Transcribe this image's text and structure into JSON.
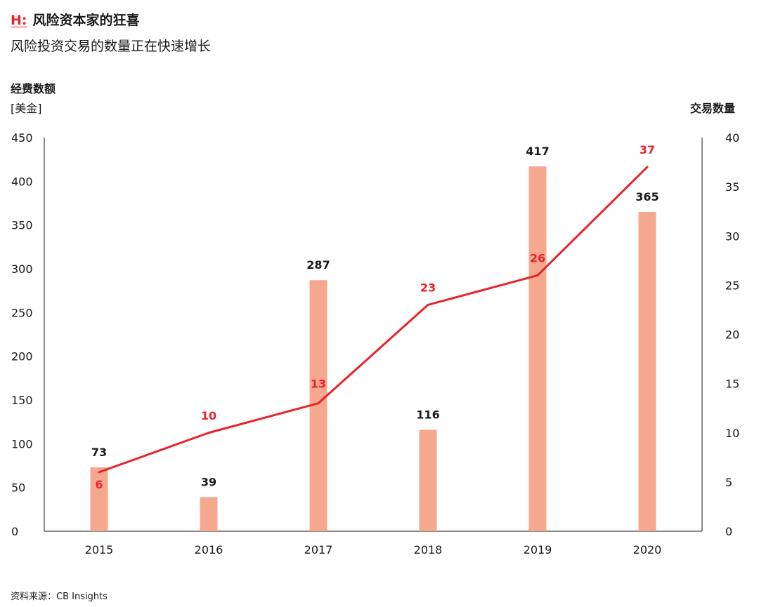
{
  "header": {
    "prefix": "H:",
    "title": "风险资本家的狂喜",
    "subtitle": "风险投资交易的数量正在快速增长"
  },
  "source": "资料来源：CB Insights",
  "colors": {
    "bar": "#f5a88e",
    "line": "#e8242b",
    "accent": "#e8242b",
    "text": "#1a1a1a",
    "axis": "#1a1a1a"
  },
  "chart_data": {
    "type": "bar",
    "categories": [
      "2015",
      "2016",
      "2017",
      "2018",
      "2019",
      "2020"
    ],
    "y_left": {
      "title": "经费数额",
      "unit": "[美金]",
      "ylim": [
        0,
        450
      ],
      "ticks": [
        0,
        50,
        100,
        150,
        200,
        250,
        300,
        350,
        400,
        450
      ]
    },
    "y_right": {
      "title": "交易数量",
      "ylim": [
        0,
        40
      ],
      "ticks": [
        0,
        5,
        10,
        15,
        20,
        25,
        30,
        35,
        40
      ]
    },
    "series": [
      {
        "type": "bar",
        "axis": "left",
        "values": [
          73,
          39,
          287,
          116,
          417,
          365
        ]
      },
      {
        "type": "line",
        "axis": "right",
        "values": [
          6,
          10,
          13,
          23,
          26,
          37
        ]
      }
    ],
    "grid": false,
    "legend": "none"
  }
}
